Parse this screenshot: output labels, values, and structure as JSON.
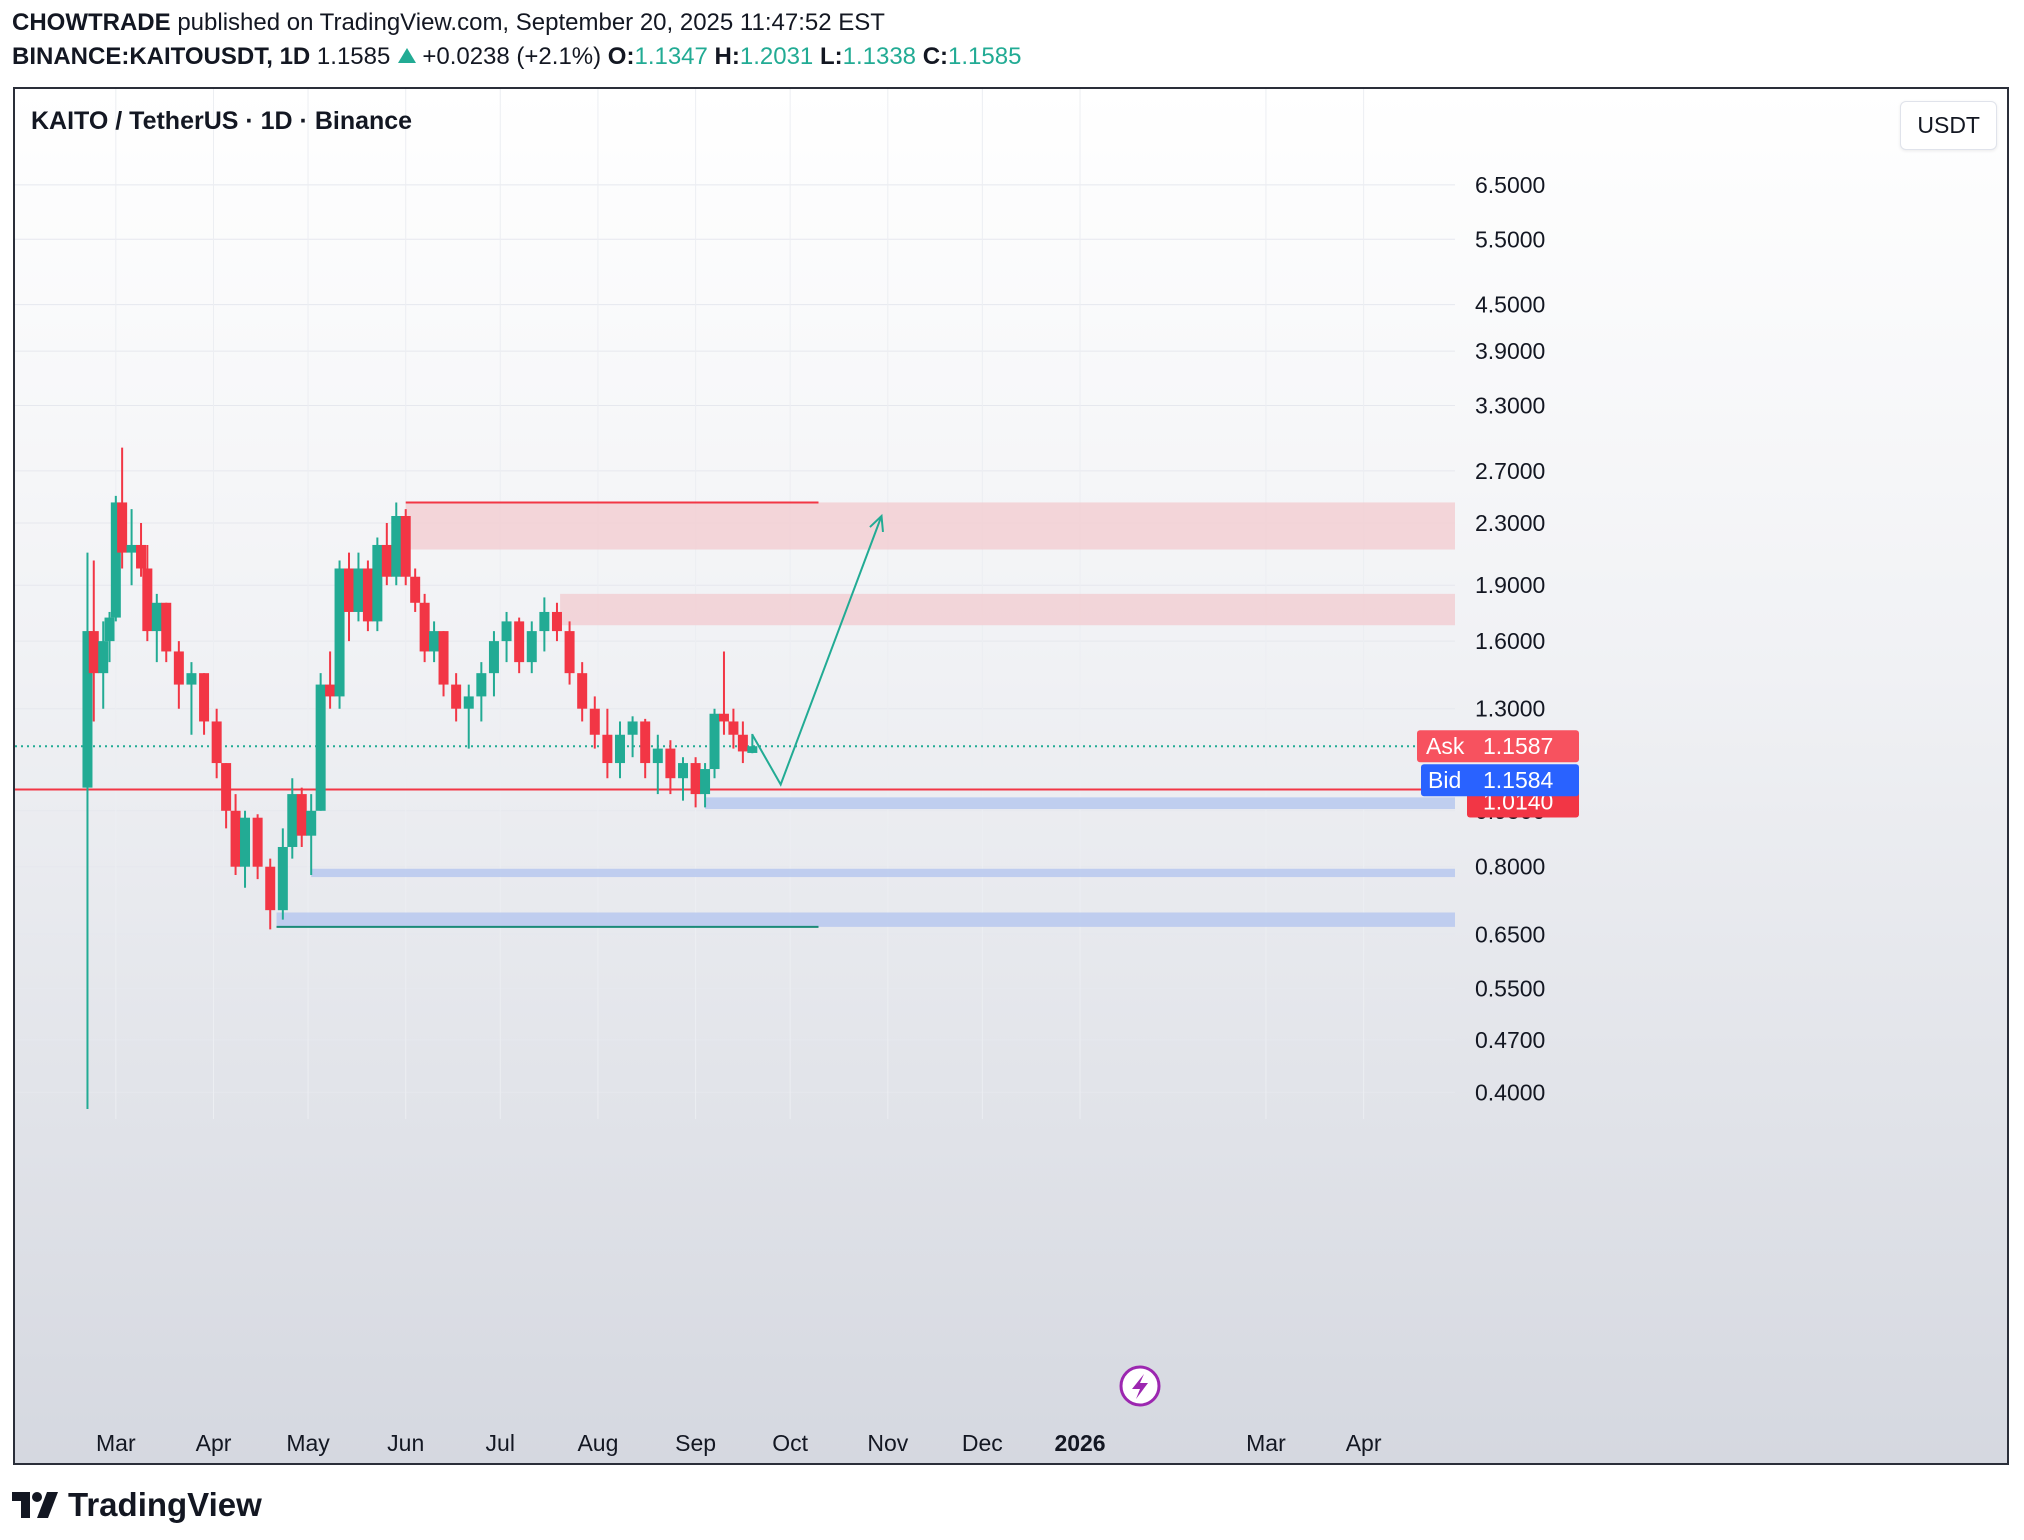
{
  "header": {
    "author": "CHOWTRADE",
    "published_text": "published on TradingView.com, September 20, 2025 11:47:52 EST",
    "symbol": "BINANCE:KAITOUSDT, 1D",
    "last": "1.1585",
    "change": "+0.0238 (+2.1%)",
    "o_label": "O:",
    "o_value": "1.1347",
    "h_label": "H:",
    "h_value": "1.2031",
    "l_label": "L:",
    "l_value": "1.1338",
    "c_label": "C:",
    "c_value": "1.1585"
  },
  "chart": {
    "title": "KAITO / TetherUS · 1D · Binance",
    "currency_button": "USDT",
    "quote_labels": {
      "ask_label": "Ask",
      "ask_value": "1.1587",
      "bid_label": "Bid",
      "bid_value": "1.1584",
      "level_value": "1.0140"
    }
  },
  "footer": {
    "brand": "TradingView"
  },
  "colors": {
    "up": "#22ab94",
    "down": "#f23645",
    "supply_zone": "#f2cfd4",
    "demand_zone": "#b7c8ee",
    "bid": "#2962ff"
  },
  "icons": [
    "tradingview-logo-icon",
    "lightning-icon"
  ],
  "chart_data": {
    "type": "candlestick",
    "scale": "log",
    "interval": "1D",
    "series": [
      {
        "name": "KAITO / TetherUS",
        "ohlc_sampled": [
          {
            "date": "2025-02-20",
            "o": 1.02,
            "h": 2.1,
            "l": 0.38,
            "c": 1.65
          },
          {
            "date": "2025-02-22",
            "o": 1.65,
            "h": 2.05,
            "l": 1.25,
            "c": 1.45
          },
          {
            "date": "2025-02-25",
            "o": 1.45,
            "h": 1.7,
            "l": 1.3,
            "c": 1.6
          },
          {
            "date": "2025-02-27",
            "o": 1.6,
            "h": 1.75,
            "l": 1.5,
            "c": 1.72
          },
          {
            "date": "2025-03-01",
            "o": 1.72,
            "h": 2.5,
            "l": 1.7,
            "c": 2.45
          },
          {
            "date": "2025-03-03",
            "o": 2.45,
            "h": 2.9,
            "l": 2.0,
            "c": 2.1
          },
          {
            "date": "2025-03-06",
            "o": 2.1,
            "h": 2.4,
            "l": 1.9,
            "c": 2.15
          },
          {
            "date": "2025-03-09",
            "o": 2.15,
            "h": 2.3,
            "l": 1.95,
            "c": 2.0
          },
          {
            "date": "2025-03-11",
            "o": 2.0,
            "h": 2.15,
            "l": 1.6,
            "c": 1.65
          },
          {
            "date": "2025-03-14",
            "o": 1.65,
            "h": 1.85,
            "l": 1.5,
            "c": 1.8
          },
          {
            "date": "2025-03-17",
            "o": 1.8,
            "h": 1.8,
            "l": 1.5,
            "c": 1.55
          },
          {
            "date": "2025-03-21",
            "o": 1.55,
            "h": 1.6,
            "l": 1.3,
            "c": 1.4
          },
          {
            "date": "2025-03-25",
            "o": 1.4,
            "h": 1.5,
            "l": 1.2,
            "c": 1.45
          },
          {
            "date": "2025-03-29",
            "o": 1.45,
            "h": 1.45,
            "l": 1.2,
            "c": 1.25
          },
          {
            "date": "2025-04-02",
            "o": 1.25,
            "h": 1.3,
            "l": 1.05,
            "c": 1.1
          },
          {
            "date": "2025-04-05",
            "o": 1.1,
            "h": 1.1,
            "l": 0.9,
            "c": 0.95
          },
          {
            "date": "2025-04-08",
            "o": 0.95,
            "h": 1.0,
            "l": 0.78,
            "c": 0.8
          },
          {
            "date": "2025-04-11",
            "o": 0.8,
            "h": 0.95,
            "l": 0.75,
            "c": 0.93
          },
          {
            "date": "2025-04-15",
            "o": 0.93,
            "h": 0.94,
            "l": 0.77,
            "c": 0.8
          },
          {
            "date": "2025-04-19",
            "o": 0.8,
            "h": 0.82,
            "l": 0.66,
            "c": 0.7
          },
          {
            "date": "2025-04-23",
            "o": 0.7,
            "h": 0.9,
            "l": 0.68,
            "c": 0.85
          },
          {
            "date": "2025-04-26",
            "o": 0.85,
            "h": 1.05,
            "l": 0.82,
            "c": 1.0
          },
          {
            "date": "2025-04-29",
            "o": 1.0,
            "h": 1.02,
            "l": 0.85,
            "c": 0.88
          },
          {
            "date": "2025-05-02",
            "o": 0.88,
            "h": 1.0,
            "l": 0.78,
            "c": 0.95
          },
          {
            "date": "2025-05-05",
            "o": 0.95,
            "h": 1.45,
            "l": 0.95,
            "c": 1.4
          },
          {
            "date": "2025-05-08",
            "o": 1.4,
            "h": 1.55,
            "l": 1.3,
            "c": 1.35
          },
          {
            "date": "2025-05-11",
            "o": 1.35,
            "h": 2.05,
            "l": 1.3,
            "c": 2.0
          },
          {
            "date": "2025-05-14",
            "o": 2.0,
            "h": 2.1,
            "l": 1.6,
            "c": 1.75
          },
          {
            "date": "2025-05-17",
            "o": 1.75,
            "h": 2.1,
            "l": 1.7,
            "c": 2.0
          },
          {
            "date": "2025-05-20",
            "o": 2.0,
            "h": 2.05,
            "l": 1.65,
            "c": 1.7
          },
          {
            "date": "2025-05-23",
            "o": 1.7,
            "h": 2.2,
            "l": 1.65,
            "c": 2.15
          },
          {
            "date": "2025-05-26",
            "o": 2.15,
            "h": 2.3,
            "l": 1.9,
            "c": 1.95
          },
          {
            "date": "2025-05-29",
            "o": 1.95,
            "h": 2.45,
            "l": 1.9,
            "c": 2.35
          },
          {
            "date": "2025-06-01",
            "o": 2.35,
            "h": 2.4,
            "l": 1.9,
            "c": 1.95
          },
          {
            "date": "2025-06-04",
            "o": 1.95,
            "h": 2.0,
            "l": 1.75,
            "c": 1.8
          },
          {
            "date": "2025-06-07",
            "o": 1.8,
            "h": 1.85,
            "l": 1.5,
            "c": 1.55
          },
          {
            "date": "2025-06-10",
            "o": 1.55,
            "h": 1.7,
            "l": 1.5,
            "c": 1.65
          },
          {
            "date": "2025-06-13",
            "o": 1.65,
            "h": 1.65,
            "l": 1.35,
            "c": 1.4
          },
          {
            "date": "2025-06-17",
            "o": 1.4,
            "h": 1.45,
            "l": 1.25,
            "c": 1.3
          },
          {
            "date": "2025-06-21",
            "o": 1.3,
            "h": 1.4,
            "l": 1.15,
            "c": 1.35
          },
          {
            "date": "2025-06-25",
            "o": 1.35,
            "h": 1.5,
            "l": 1.25,
            "c": 1.45
          },
          {
            "date": "2025-06-29",
            "o": 1.45,
            "h": 1.65,
            "l": 1.35,
            "c": 1.6
          },
          {
            "date": "2025-07-03",
            "o": 1.6,
            "h": 1.75,
            "l": 1.5,
            "c": 1.7
          },
          {
            "date": "2025-07-07",
            "o": 1.7,
            "h": 1.72,
            "l": 1.45,
            "c": 1.5
          },
          {
            "date": "2025-07-11",
            "o": 1.5,
            "h": 1.7,
            "l": 1.45,
            "c": 1.65
          },
          {
            "date": "2025-07-15",
            "o": 1.65,
            "h": 1.83,
            "l": 1.55,
            "c": 1.75
          },
          {
            "date": "2025-07-19",
            "o": 1.75,
            "h": 1.8,
            "l": 1.6,
            "c": 1.65
          },
          {
            "date": "2025-07-23",
            "o": 1.65,
            "h": 1.7,
            "l": 1.4,
            "c": 1.45
          },
          {
            "date": "2025-07-27",
            "o": 1.45,
            "h": 1.5,
            "l": 1.25,
            "c": 1.3
          },
          {
            "date": "2025-07-31",
            "o": 1.3,
            "h": 1.35,
            "l": 1.15,
            "c": 1.2
          },
          {
            "date": "2025-08-04",
            "o": 1.2,
            "h": 1.3,
            "l": 1.05,
            "c": 1.1
          },
          {
            "date": "2025-08-08",
            "o": 1.1,
            "h": 1.25,
            "l": 1.05,
            "c": 1.2
          },
          {
            "date": "2025-08-12",
            "o": 1.2,
            "h": 1.27,
            "l": 1.12,
            "c": 1.25
          },
          {
            "date": "2025-08-16",
            "o": 1.25,
            "h": 1.26,
            "l": 1.05,
            "c": 1.1
          },
          {
            "date": "2025-08-20",
            "o": 1.1,
            "h": 1.2,
            "l": 1.0,
            "c": 1.15
          },
          {
            "date": "2025-08-24",
            "o": 1.15,
            "h": 1.18,
            "l": 1.0,
            "c": 1.05
          },
          {
            "date": "2025-08-28",
            "o": 1.05,
            "h": 1.12,
            "l": 0.98,
            "c": 1.1
          },
          {
            "date": "2025-09-01",
            "o": 1.1,
            "h": 1.12,
            "l": 0.96,
            "c": 1.0
          },
          {
            "date": "2025-09-04",
            "o": 1.0,
            "h": 1.1,
            "l": 0.96,
            "c": 1.08
          },
          {
            "date": "2025-09-07",
            "o": 1.08,
            "h": 1.3,
            "l": 1.05,
            "c": 1.28
          },
          {
            "date": "2025-09-10",
            "o": 1.28,
            "h": 1.55,
            "l": 1.2,
            "c": 1.25
          },
          {
            "date": "2025-09-13",
            "o": 1.25,
            "h": 1.3,
            "l": 1.15,
            "c": 1.2
          },
          {
            "date": "2025-09-16",
            "o": 1.2,
            "h": 1.25,
            "l": 1.1,
            "c": 1.14
          },
          {
            "date": "2025-09-19",
            "o": 1.1347,
            "h": 1.2031,
            "l": 1.1338,
            "c": 1.1585
          }
        ]
      }
    ],
    "y_ticks": [
      "6.5000",
      "5.5000",
      "4.5000",
      "3.9000",
      "3.3000",
      "2.7000",
      "2.3000",
      "1.9000",
      "1.6000",
      "1.3000",
      "0.9500",
      "0.8000",
      "0.6500",
      "0.5500",
      "0.4700",
      "0.4000"
    ],
    "y_tick_values": [
      6.5,
      5.5,
      4.5,
      3.9,
      3.3,
      2.7,
      2.3,
      1.9,
      1.6,
      1.3,
      0.95,
      0.8,
      0.65,
      0.55,
      0.47,
      0.4
    ],
    "x_ticks": [
      {
        "label": "Mar",
        "date": "2025-03-01",
        "bold": false
      },
      {
        "label": "Apr",
        "date": "2025-04-01",
        "bold": false
      },
      {
        "label": "May",
        "date": "2025-05-01",
        "bold": false
      },
      {
        "label": "Jun",
        "date": "2025-06-01",
        "bold": false
      },
      {
        "label": "Jul",
        "date": "2025-07-01",
        "bold": false
      },
      {
        "label": "Aug",
        "date": "2025-08-01",
        "bold": false
      },
      {
        "label": "Sep",
        "date": "2025-09-01",
        "bold": false
      },
      {
        "label": "Oct",
        "date": "2025-10-01",
        "bold": false
      },
      {
        "label": "Nov",
        "date": "2025-11-01",
        "bold": false
      },
      {
        "label": "Dec",
        "date": "2025-12-01",
        "bold": false
      },
      {
        "label": "2026",
        "date": "2026-01-01",
        "bold": true
      },
      {
        "label": "Mar",
        "date": "2026-03-01",
        "bold": false
      },
      {
        "label": "Apr",
        "date": "2026-04-01",
        "bold": false
      }
    ],
    "x_range": [
      "2025-01-28",
      "2026-04-30"
    ],
    "y_range": [
      0.38,
      7.6
    ],
    "current_price_line": 1.1585,
    "horizontal_level": 1.014,
    "zones": [
      {
        "kind": "supply",
        "from_date": "2025-06-01",
        "to_date": "2026-04-30",
        "low": 2.12,
        "high": 2.45
      },
      {
        "kind": "supply",
        "from_date": "2025-07-20",
        "to_date": "2026-04-30",
        "low": 1.68,
        "high": 1.85
      },
      {
        "kind": "demand",
        "from_date": "2025-09-04",
        "to_date": "2026-04-30",
        "low": 0.955,
        "high": 0.99
      },
      {
        "kind": "demand",
        "from_date": "2025-05-02",
        "to_date": "2026-04-30",
        "low": 0.775,
        "high": 0.795
      },
      {
        "kind": "demand",
        "from_date": "2025-04-21",
        "to_date": "2026-04-30",
        "low": 0.665,
        "high": 0.695
      }
    ],
    "lines": [
      {
        "kind": "resistance",
        "from_date": "2025-06-01",
        "to_date": "2025-10-10",
        "value": 2.45
      },
      {
        "kind": "support",
        "from_date": "2025-04-21",
        "to_date": "2025-10-10",
        "value": 0.665
      }
    ],
    "projection": [
      {
        "date": "2025-09-19",
        "price": 1.2
      },
      {
        "date": "2025-09-28",
        "price": 1.03
      },
      {
        "date": "2025-10-30",
        "price": 2.35
      }
    ],
    "grid": true,
    "legend": "none"
  }
}
